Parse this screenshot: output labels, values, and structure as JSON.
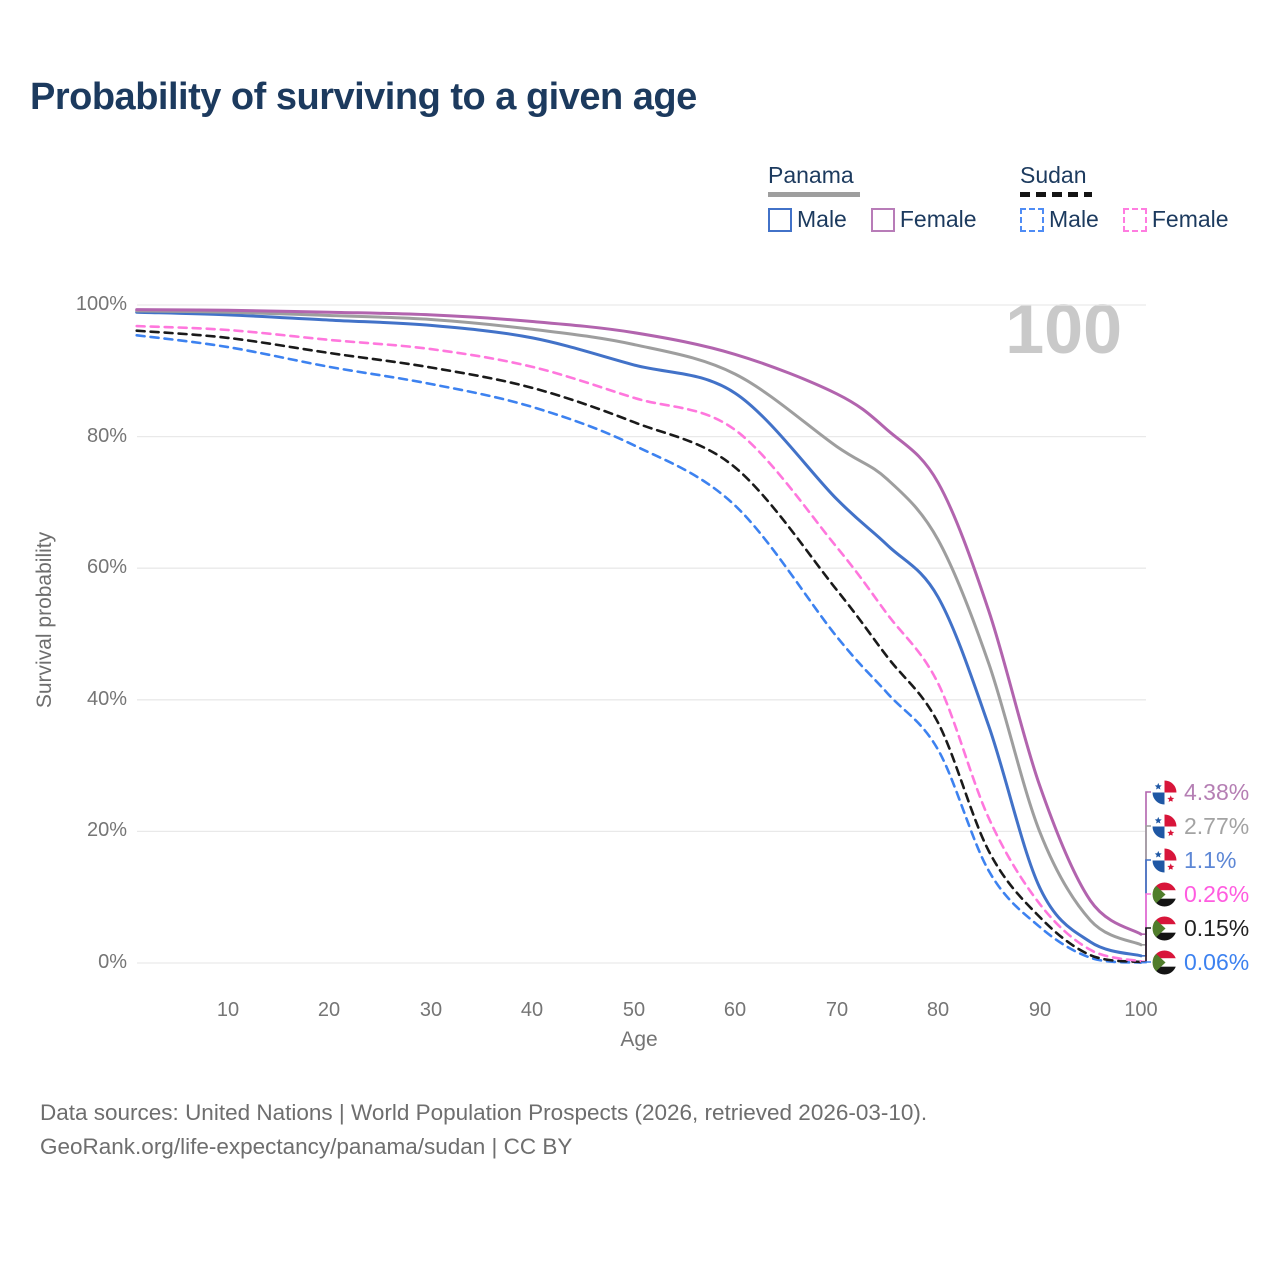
{
  "title": "Probability of surviving to a given age",
  "watermark": "100",
  "legend": {
    "groups": [
      {
        "country": "Panama",
        "style": "solid",
        "line_color": "#9e9e9e",
        "items": [
          {
            "label": "Male",
            "color": "#4272c8"
          },
          {
            "label": "Female",
            "color": "#b87cb8"
          }
        ]
      },
      {
        "country": "Sudan",
        "style": "dashed",
        "line_color": "#141414",
        "items": [
          {
            "label": "Male",
            "color": "#4e8cf5"
          },
          {
            "label": "Female",
            "color": "#ff7ce0"
          }
        ]
      }
    ]
  },
  "axes": {
    "y": {
      "label": "Survival probability",
      "ticks": [
        "0%",
        "20%",
        "40%",
        "60%",
        "80%",
        "100%"
      ],
      "tick_values": [
        0,
        20,
        40,
        60,
        80,
        100
      ]
    },
    "x": {
      "label": "Age",
      "ticks": [
        "10",
        "20",
        "30",
        "40",
        "50",
        "60",
        "70",
        "80",
        "90",
        "100"
      ],
      "tick_values": [
        10,
        20,
        30,
        40,
        50,
        60,
        70,
        80,
        90,
        100
      ]
    }
  },
  "footer": {
    "line1": "Data sources: United Nations | World Population Prospects (2026, retrieved 2026-03-10).",
    "line2": "GeoRank.org/life-expectancy/panama/sudan | CC BY"
  },
  "chart_data": {
    "type": "line",
    "title": "Probability of surviving to a given age",
    "xlabel": "Age",
    "ylabel": "Survival probability",
    "xlim": [
      1,
      100
    ],
    "ylim": [
      0,
      100
    ],
    "grid": "horizontal",
    "legend_position": "top-right",
    "hover_age": "100",
    "x": [
      1,
      10,
      20,
      30,
      40,
      50,
      60,
      70,
      75,
      80,
      85,
      90,
      95,
      100
    ],
    "series": [
      {
        "name": "Panama Female",
        "country": "Panama",
        "sex": "Female",
        "style": "solid",
        "color": "#b264ae",
        "label_color": "#b57fb4",
        "end_label": "4.38%",
        "values": [
          99.3,
          99.2,
          98.9,
          98.5,
          97.5,
          95.8,
          92.5,
          86.5,
          81.0,
          73.0,
          53.5,
          27.0,
          9.5,
          4.38
        ]
      },
      {
        "name": "Panama Both sexes",
        "country": "Panama",
        "sex": "Both",
        "style": "solid",
        "color": "#9e9e9e",
        "label_color": "#a3a3a3",
        "end_label": "2.77%",
        "values": [
          99.1,
          98.9,
          98.4,
          97.8,
          96.3,
          94.0,
          89.5,
          78.5,
          73.5,
          64.3,
          45.5,
          20.0,
          6.5,
          2.77
        ]
      },
      {
        "name": "Panama Male",
        "country": "Panama",
        "sex": "Male",
        "style": "solid",
        "color": "#4272c8",
        "label_color": "#5d87d5",
        "end_label": "1.1%",
        "values": [
          98.9,
          98.5,
          97.7,
          96.9,
          95.0,
          90.9,
          86.6,
          70.5,
          63.5,
          55.6,
          36.0,
          11.5,
          3.2,
          1.1
        ]
      },
      {
        "name": "Sudan Female",
        "country": "Sudan",
        "sex": "Female",
        "style": "dashed",
        "color": "#ff77dd",
        "label_color": "#ff5ce0",
        "end_label": "0.26%",
        "values": [
          96.8,
          96.2,
          94.7,
          93.3,
          90.6,
          85.9,
          81.0,
          63.2,
          53.0,
          42.5,
          22.0,
          9.0,
          2.0,
          0.26
        ]
      },
      {
        "name": "Sudan Both sexes",
        "country": "Sudan",
        "sex": "Both",
        "style": "dashed",
        "color": "#1a1a1a",
        "label_color": "#222222",
        "end_label": "0.15%",
        "values": [
          96.1,
          95.0,
          92.7,
          90.5,
          87.4,
          82.2,
          75.3,
          56.7,
          46.5,
          36.5,
          17.0,
          7.0,
          1.2,
          0.15
        ]
      },
      {
        "name": "Sudan Male",
        "country": "Sudan",
        "sex": "Male",
        "style": "dashed",
        "color": "#3d82f0",
        "label_color": "#3d82f0",
        "end_label": "0.06%",
        "values": [
          95.4,
          93.6,
          90.6,
          88.0,
          84.5,
          78.7,
          69.5,
          49.6,
          41.0,
          32.4,
          14.0,
          5.5,
          0.8,
          0.06
        ]
      }
    ]
  }
}
